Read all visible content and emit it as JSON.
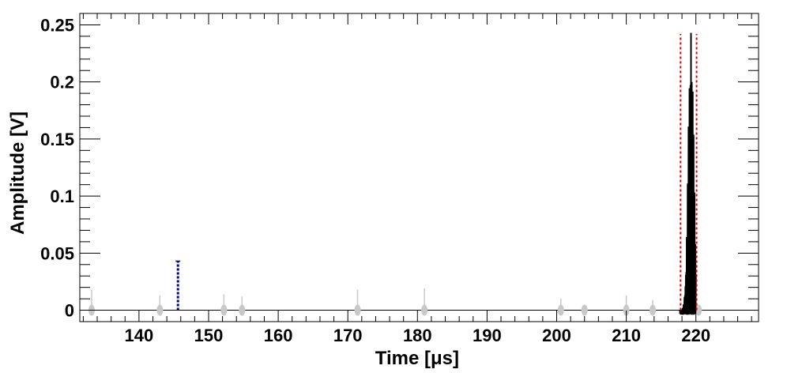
{
  "chart_data": {
    "type": "line",
    "title": "",
    "xlabel": "Time [μs]",
    "ylabel": "Amplitude [V]",
    "xlim": [
      131.5,
      229
    ],
    "ylim": [
      -0.01,
      0.26
    ],
    "x_ticks": [
      140,
      150,
      160,
      170,
      180,
      190,
      200,
      210,
      220
    ],
    "x_tick_labels": [
      "140",
      "150",
      "160",
      "170",
      "180",
      "190",
      "200",
      "210",
      "220"
    ],
    "y_ticks": [
      0,
      0.05,
      0.1,
      0.15,
      0.2,
      0.25
    ],
    "y_tick_labels": [
      "0",
      "0.05",
      "0.1",
      "0.15",
      "0.2",
      "0.25"
    ],
    "grid": false,
    "legend": "none",
    "baseline_y": 0,
    "series": [
      {
        "color": "#c8c8c8",
        "style": "noise-pulses",
        "points": [
          {
            "x": 133.2,
            "peak": 0.018
          },
          {
            "x": 143.0,
            "peak": 0.013
          },
          {
            "x": 152.2,
            "peak": 0.014
          },
          {
            "x": 154.8,
            "peak": 0.012
          },
          {
            "x": 171.4,
            "peak": 0.018
          },
          {
            "x": 181.0,
            "peak": 0.019
          },
          {
            "x": 200.6,
            "peak": 0.01
          },
          {
            "x": 204.0,
            "peak": 0.004
          },
          {
            "x": 210.0,
            "peak": 0.013
          },
          {
            "x": 213.8,
            "peak": 0.009
          },
          {
            "x": 220.4,
            "peak": 0.004
          }
        ]
      },
      {
        "color": "#00008b",
        "style": "marker-bar",
        "x": 145.6,
        "top": 0.043
      },
      {
        "color": "#000000",
        "style": "signal-pulse",
        "x_start": 217.7,
        "x_end": 220.0,
        "peak": 0.243,
        "peak_x": 219.3
      }
    ],
    "annotations": {
      "window_lines": {
        "color": "#e00000",
        "style": "dotted",
        "x": [
          217.8,
          220.1
        ],
        "top": 0.242
      }
    }
  }
}
